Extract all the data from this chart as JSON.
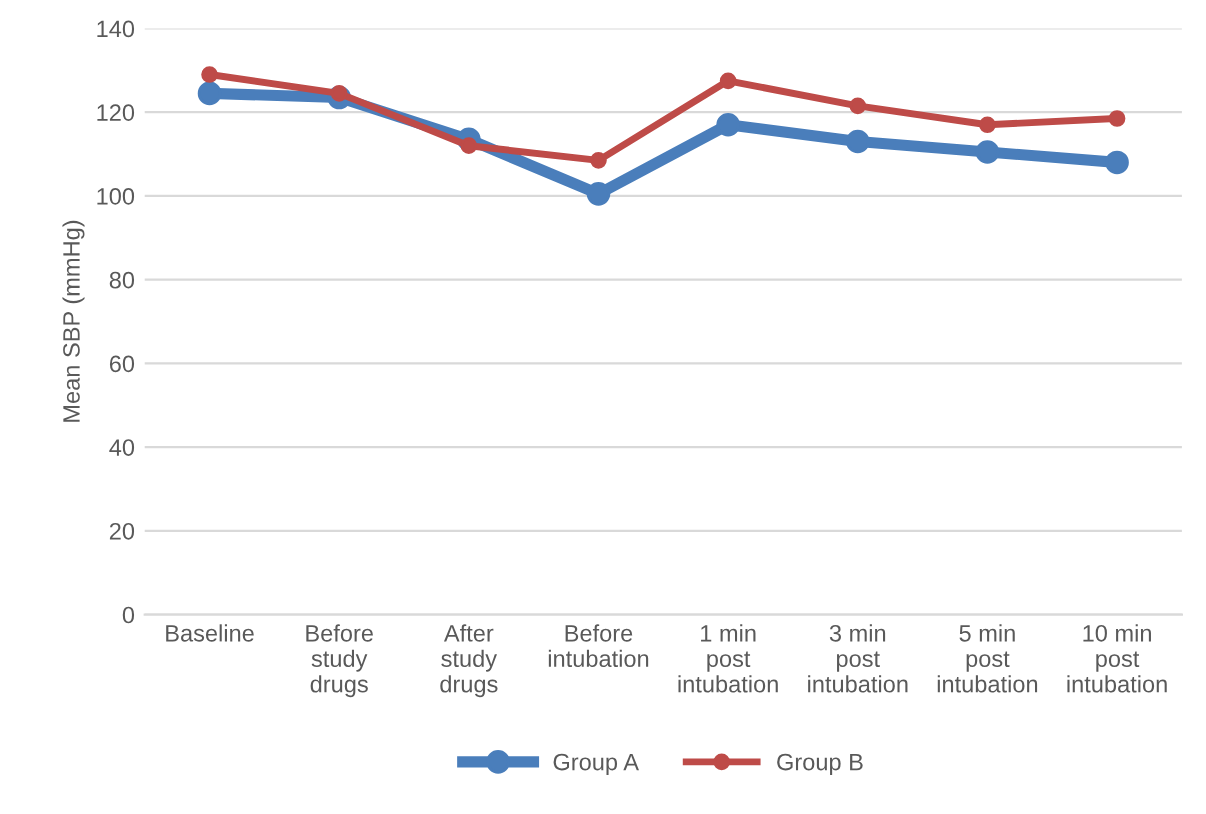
{
  "chart_data": {
    "type": "line",
    "ylabel": "Mean SBP (mmHg)",
    "categories": [
      "Baseline",
      "Before\nstudy\ndrugs",
      "After\nstudy\ndrugs",
      "Before\nintubation",
      "1 min\npost\nintubation",
      "3 min\npost\nintubation",
      "5 min\npost\nintubation",
      "10 min\npost\nintubation"
    ],
    "series": [
      {
        "name": "Group A",
        "color": "#4a7ebb",
        "values": [
          124.5,
          123.5,
          113.5,
          100.5,
          117,
          113,
          110.5,
          108
        ]
      },
      {
        "name": "Group B",
        "color": "#be4b48",
        "values": [
          129,
          124.5,
          112,
          108.5,
          127.5,
          121.5,
          117,
          118.5
        ]
      }
    ],
    "ylim": [
      0,
      140
    ],
    "yticks": [
      0,
      20,
      40,
      60,
      80,
      100,
      120,
      140
    ],
    "grid": "y",
    "legend": "bottom",
    "marker": "circle",
    "line_style": "solid"
  }
}
